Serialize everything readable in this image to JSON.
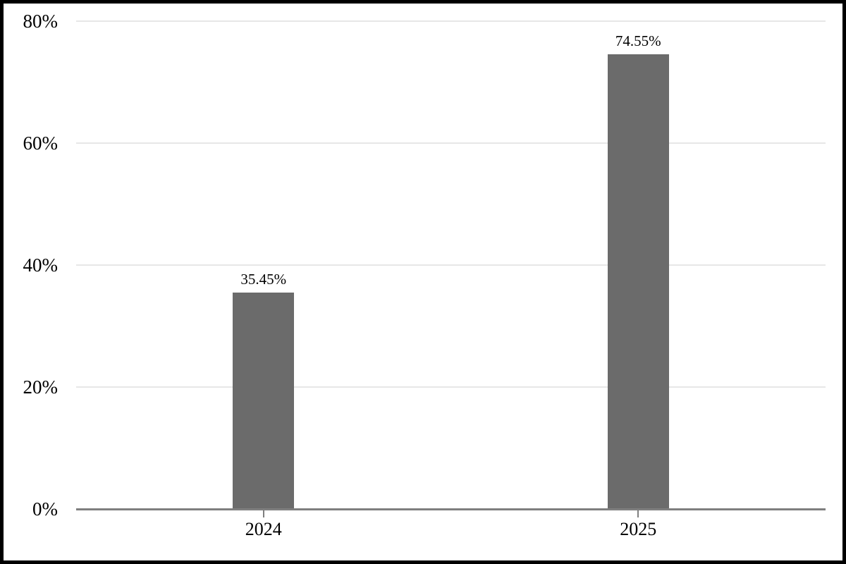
{
  "chart_data": {
    "type": "bar",
    "categories": [
      "2024",
      "2025"
    ],
    "values": [
      35.45,
      74.55
    ],
    "value_labels": [
      "35.45%",
      "74.55%"
    ],
    "title": "",
    "xlabel": "",
    "ylabel": "",
    "ylim": [
      0,
      80
    ],
    "yticks": [
      0,
      20,
      40,
      60,
      80
    ],
    "ytick_labels": [
      "0%",
      "20%",
      "40%",
      "60%",
      "80%"
    ],
    "grid": "horizontal",
    "legend": "none",
    "colors": {
      "bar_fill": "#6b6b6b",
      "gridline": "#e7e7e7",
      "axis_line": "#7f7f7f",
      "tick_mark": "#7f7f7f",
      "label_text": "#000000",
      "background": "#ffffff",
      "frame_border": "#000000"
    }
  }
}
